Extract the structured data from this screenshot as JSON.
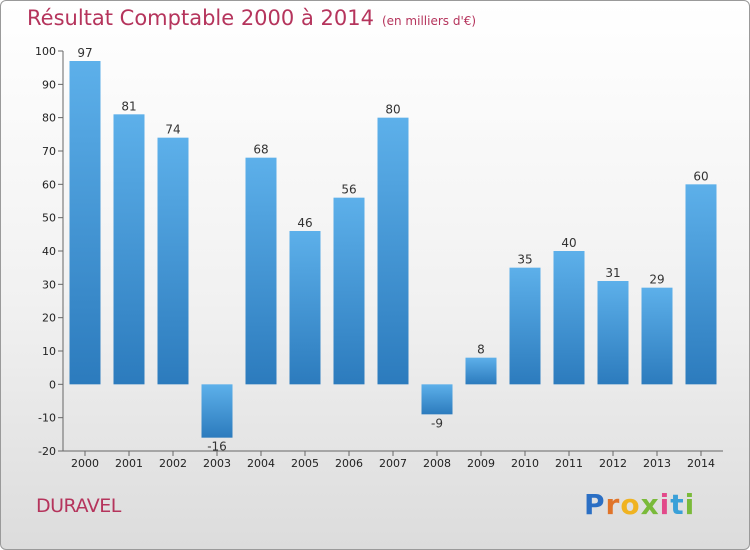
{
  "title": "Résultat Comptable 2000 à 2014",
  "subtitle": "(en milliers d'€)",
  "commune": "DURAVEL",
  "logo": {
    "letters": [
      "P",
      "r",
      "o",
      "x",
      "i",
      "t",
      "i"
    ],
    "colors": [
      "#2b6fc4",
      "#e0742a",
      "#f0b321",
      "#7aba3a",
      "#e24a8a",
      "#3aa0d8",
      "#7aba3a"
    ]
  },
  "colors": {
    "title": "#b5345c",
    "bar_top": "#5db0ea",
    "bar_bottom": "#2c7bbd",
    "axis": "#666666"
  },
  "chart_data": {
    "type": "bar",
    "title": "Résultat Comptable 2000 à 2014",
    "subtitle": "(en milliers d'€)",
    "categories": [
      "2000",
      "2001",
      "2002",
      "2003",
      "2004",
      "2005",
      "2006",
      "2007",
      "2008",
      "2009",
      "2010",
      "2011",
      "2012",
      "2013",
      "2014"
    ],
    "values": [
      97,
      81,
      74,
      -16,
      68,
      46,
      56,
      80,
      -9,
      8,
      35,
      40,
      31,
      29,
      60
    ],
    "ylim": [
      -20,
      100
    ],
    "yticks": [
      -20,
      -10,
      0,
      10,
      20,
      30,
      40,
      50,
      60,
      70,
      80,
      90,
      100
    ],
    "grid": false,
    "legend": "none"
  }
}
